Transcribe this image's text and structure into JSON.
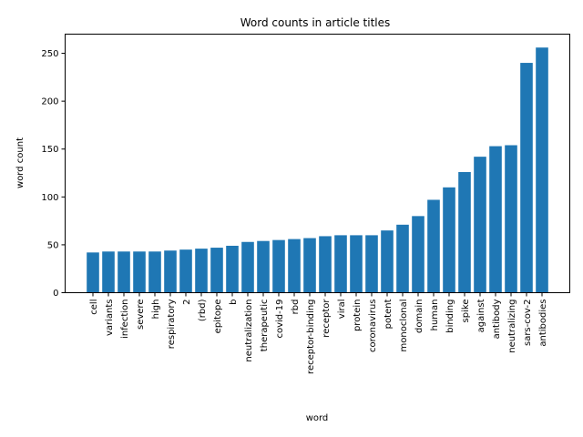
{
  "chart_data": {
    "type": "bar",
    "title": "Word counts in article titles",
    "xlabel": "word",
    "ylabel": "word count",
    "ylim": [
      0,
      270
    ],
    "yticks": [
      0,
      50,
      100,
      150,
      200,
      250
    ],
    "grid": false,
    "bar_color": "#1f77b4",
    "categories": [
      "cell",
      "variants",
      "infection",
      "severe",
      "high",
      "respiratory",
      "2",
      "(rbd)",
      "epitope",
      "b",
      "neutralization",
      "therapeutic",
      "covid-19",
      "rbd",
      "receptor-binding",
      "receptor",
      "viral",
      "protein",
      "coronavirus",
      "potent",
      "monoclonal",
      "domain",
      "human",
      "binding",
      "spike",
      "against",
      "antibody",
      "neutralizing",
      "sars-cov-2",
      "antibodies"
    ],
    "values": [
      42,
      43,
      43,
      43,
      43,
      44,
      45,
      46,
      47,
      49,
      53,
      54,
      55,
      56,
      57,
      59,
      60,
      60,
      60,
      65,
      71,
      80,
      97,
      110,
      126,
      142,
      153,
      154,
      240,
      256
    ]
  }
}
